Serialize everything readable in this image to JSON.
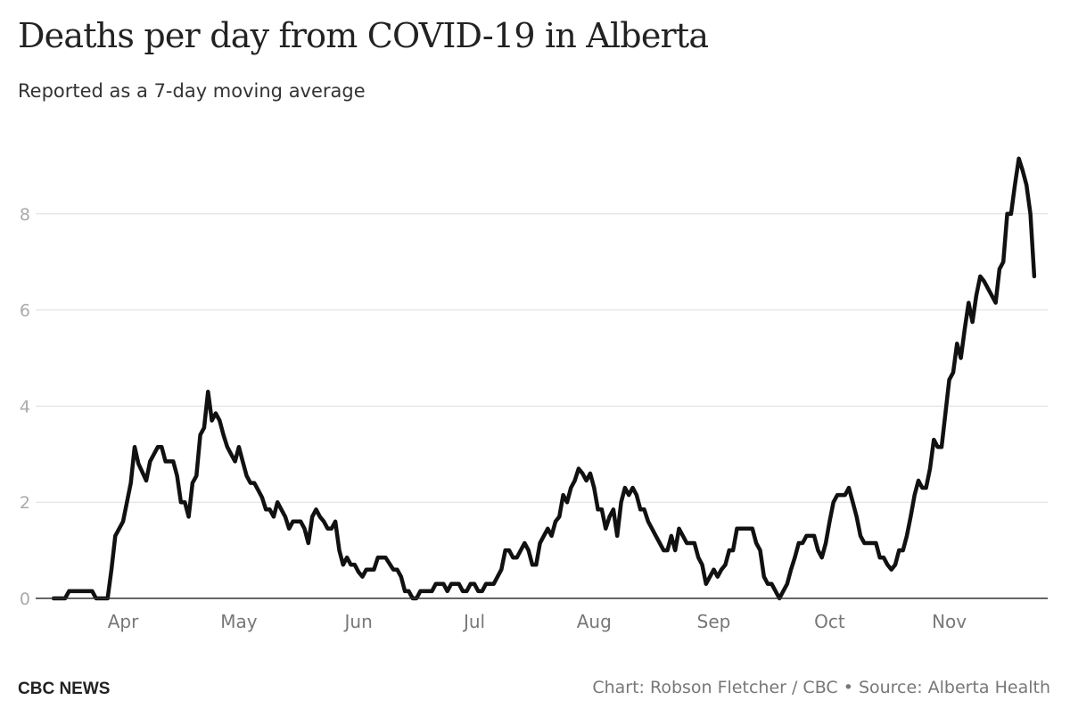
{
  "header": {
    "title": "Deaths per day from COVID-19 in Alberta",
    "subtitle": "Reported as a 7-day moving average"
  },
  "footer": {
    "brand": "CBC NEWS",
    "credit": "Chart: Robson Fletcher / CBC • Source: Alberta Health"
  },
  "colors": {
    "line": "#111111",
    "grid": "#dddddd",
    "text": "#222222",
    "muted": "#777777"
  },
  "chart_data": {
    "type": "line",
    "title": "Deaths per day from COVID-19 in Alberta",
    "subtitle": "Reported as a 7-day moving average",
    "xlabel": "",
    "ylabel": "",
    "grid": true,
    "legend": "none",
    "y_ticks": [
      0,
      2,
      4,
      6,
      8
    ],
    "ylim": [
      0,
      9.6
    ],
    "x_ticks": [
      {
        "label": "Apr",
        "day": 0
      },
      {
        "label": "May",
        "day": 30
      },
      {
        "label": "Jun",
        "day": 61
      },
      {
        "label": "Jul",
        "day": 91
      },
      {
        "label": "Aug",
        "day": 122
      },
      {
        "label": "Sep",
        "day": 153
      },
      {
        "label": "Oct",
        "day": 183
      },
      {
        "label": "Nov",
        "day": 214
      }
    ],
    "xlim": [
      -18,
      240
    ],
    "series": [
      {
        "points": [
          [
            -18,
            0
          ],
          [
            -15,
            0
          ],
          [
            -14,
            0.15
          ],
          [
            -11,
            0.15
          ],
          [
            -8,
            0.15
          ],
          [
            -7,
            0
          ],
          [
            -4,
            0
          ],
          [
            -3,
            0.6
          ],
          [
            -2,
            1.3
          ],
          [
            0,
            1.6
          ],
          [
            2,
            2.4
          ],
          [
            3,
            3.15
          ],
          [
            4,
            2.8
          ],
          [
            6,
            2.45
          ],
          [
            7,
            2.85
          ],
          [
            9,
            3.15
          ],
          [
            10,
            3.15
          ],
          [
            11,
            2.85
          ],
          [
            13,
            2.85
          ],
          [
            14,
            2.55
          ],
          [
            15,
            2.0
          ],
          [
            16,
            2.0
          ],
          [
            17,
            1.7
          ],
          [
            18,
            2.4
          ],
          [
            19,
            2.55
          ],
          [
            20,
            3.4
          ],
          [
            21,
            3.55
          ],
          [
            22,
            4.3
          ],
          [
            23,
            3.7
          ],
          [
            24,
            3.85
          ],
          [
            25,
            3.7
          ],
          [
            26,
            3.4
          ],
          [
            27,
            3.15
          ],
          [
            28,
            3.0
          ],
          [
            29,
            2.85
          ],
          [
            30,
            3.15
          ],
          [
            31,
            2.85
          ],
          [
            32,
            2.55
          ],
          [
            33,
            2.4
          ],
          [
            34,
            2.4
          ],
          [
            35,
            2.25
          ],
          [
            36,
            2.1
          ],
          [
            37,
            1.85
          ],
          [
            38,
            1.85
          ],
          [
            39,
            1.7
          ],
          [
            40,
            2.0
          ],
          [
            41,
            1.85
          ],
          [
            42,
            1.7
          ],
          [
            43,
            1.45
          ],
          [
            44,
            1.6
          ],
          [
            46,
            1.6
          ],
          [
            47,
            1.45
          ],
          [
            48,
            1.15
          ],
          [
            49,
            1.7
          ],
          [
            50,
            1.85
          ],
          [
            51,
            1.7
          ],
          [
            52,
            1.6
          ],
          [
            53,
            1.45
          ],
          [
            54,
            1.45
          ],
          [
            55,
            1.6
          ],
          [
            56,
            1.0
          ],
          [
            57,
            0.7
          ],
          [
            58,
            0.85
          ],
          [
            59,
            0.7
          ],
          [
            60,
            0.7
          ],
          [
            61,
            0.55
          ],
          [
            62,
            0.45
          ],
          [
            63,
            0.6
          ],
          [
            65,
            0.6
          ],
          [
            66,
            0.85
          ],
          [
            68,
            0.85
          ],
          [
            70,
            0.6
          ],
          [
            71,
            0.6
          ],
          [
            72,
            0.45
          ],
          [
            73,
            0.15
          ],
          [
            74,
            0.15
          ],
          [
            75,
            0
          ],
          [
            76,
            0
          ],
          [
            77,
            0.15
          ],
          [
            79,
            0.15
          ],
          [
            80,
            0.15
          ],
          [
            81,
            0.3
          ],
          [
            83,
            0.3
          ],
          [
            84,
            0.15
          ],
          [
            85,
            0.3
          ],
          [
            87,
            0.3
          ],
          [
            88,
            0.15
          ],
          [
            89,
            0.15
          ],
          [
            90,
            0.3
          ],
          [
            91,
            0.3
          ],
          [
            92,
            0.15
          ],
          [
            93,
            0.15
          ],
          [
            94,
            0.3
          ],
          [
            96,
            0.3
          ],
          [
            97,
            0.45
          ],
          [
            98,
            0.6
          ],
          [
            99,
            1.0
          ],
          [
            100,
            1.0
          ],
          [
            101,
            0.85
          ],
          [
            102,
            0.85
          ],
          [
            104,
            1.15
          ],
          [
            105,
            1.0
          ],
          [
            106,
            0.7
          ],
          [
            107,
            0.7
          ],
          [
            108,
            1.15
          ],
          [
            110,
            1.45
          ],
          [
            111,
            1.3
          ],
          [
            112,
            1.6
          ],
          [
            113,
            1.7
          ],
          [
            114,
            2.15
          ],
          [
            115,
            2.0
          ],
          [
            116,
            2.3
          ],
          [
            117,
            2.45
          ],
          [
            118,
            2.7
          ],
          [
            119,
            2.6
          ],
          [
            120,
            2.45
          ],
          [
            121,
            2.6
          ],
          [
            122,
            2.3
          ],
          [
            123,
            1.85
          ],
          [
            124,
            1.85
          ],
          [
            125,
            1.45
          ],
          [
            126,
            1.7
          ],
          [
            127,
            1.85
          ],
          [
            128,
            1.3
          ],
          [
            129,
            2.0
          ],
          [
            130,
            2.3
          ],
          [
            131,
            2.15
          ],
          [
            132,
            2.3
          ],
          [
            133,
            2.15
          ],
          [
            134,
            1.85
          ],
          [
            135,
            1.85
          ],
          [
            136,
            1.6
          ],
          [
            137,
            1.45
          ],
          [
            138,
            1.3
          ],
          [
            139,
            1.15
          ],
          [
            140,
            1.0
          ],
          [
            141,
            1.0
          ],
          [
            142,
            1.3
          ],
          [
            143,
            1.0
          ],
          [
            144,
            1.45
          ],
          [
            145,
            1.3
          ],
          [
            146,
            1.15
          ],
          [
            148,
            1.15
          ],
          [
            149,
            0.85
          ],
          [
            150,
            0.7
          ],
          [
            151,
            0.3
          ],
          [
            152,
            0.45
          ],
          [
            153,
            0.6
          ],
          [
            154,
            0.45
          ],
          [
            155,
            0.6
          ],
          [
            156,
            0.7
          ],
          [
            157,
            1.0
          ],
          [
            158,
            1.0
          ],
          [
            159,
            1.45
          ],
          [
            163,
            1.45
          ],
          [
            164,
            1.15
          ],
          [
            165,
            1.0
          ],
          [
            166,
            0.45
          ],
          [
            167,
            0.3
          ],
          [
            168,
            0.3
          ],
          [
            169,
            0.15
          ],
          [
            170,
            0
          ],
          [
            171,
            0.15
          ],
          [
            172,
            0.3
          ],
          [
            173,
            0.6
          ],
          [
            174,
            0.85
          ],
          [
            175,
            1.15
          ],
          [
            176,
            1.15
          ],
          [
            177,
            1.3
          ],
          [
            179,
            1.3
          ],
          [
            180,
            1.0
          ],
          [
            181,
            0.85
          ],
          [
            182,
            1.15
          ],
          [
            183,
            1.6
          ],
          [
            184,
            2.0
          ],
          [
            185,
            2.15
          ],
          [
            187,
            2.15
          ],
          [
            188,
            2.3
          ],
          [
            189,
            2.0
          ],
          [
            190,
            1.7
          ],
          [
            191,
            1.3
          ],
          [
            192,
            1.15
          ],
          [
            195,
            1.15
          ],
          [
            196,
            0.85
          ],
          [
            197,
            0.85
          ],
          [
            198,
            0.7
          ],
          [
            199,
            0.6
          ],
          [
            200,
            0.7
          ],
          [
            201,
            1.0
          ],
          [
            202,
            1.0
          ],
          [
            203,
            1.3
          ],
          [
            204,
            1.7
          ],
          [
            205,
            2.15
          ],
          [
            206,
            2.45
          ],
          [
            207,
            2.3
          ],
          [
            208,
            2.3
          ],
          [
            209,
            2.7
          ],
          [
            210,
            3.3
          ],
          [
            211,
            3.15
          ],
          [
            212,
            3.15
          ],
          [
            213,
            3.85
          ],
          [
            214,
            4.55
          ],
          [
            215,
            4.7
          ],
          [
            216,
            5.3
          ],
          [
            217,
            5.0
          ],
          [
            218,
            5.6
          ],
          [
            219,
            6.15
          ],
          [
            220,
            5.75
          ],
          [
            221,
            6.3
          ],
          [
            222,
            6.7
          ],
          [
            223,
            6.6
          ],
          [
            224,
            6.45
          ],
          [
            225,
            6.3
          ],
          [
            226,
            6.15
          ],
          [
            227,
            6.85
          ],
          [
            228,
            7.0
          ],
          [
            229,
            8.0
          ],
          [
            230,
            8.0
          ],
          [
            231,
            8.6
          ],
          [
            232,
            9.15
          ],
          [
            233,
            8.9
          ],
          [
            234,
            8.6
          ],
          [
            235,
            8.0
          ],
          [
            236,
            6.7
          ]
        ]
      }
    ]
  }
}
